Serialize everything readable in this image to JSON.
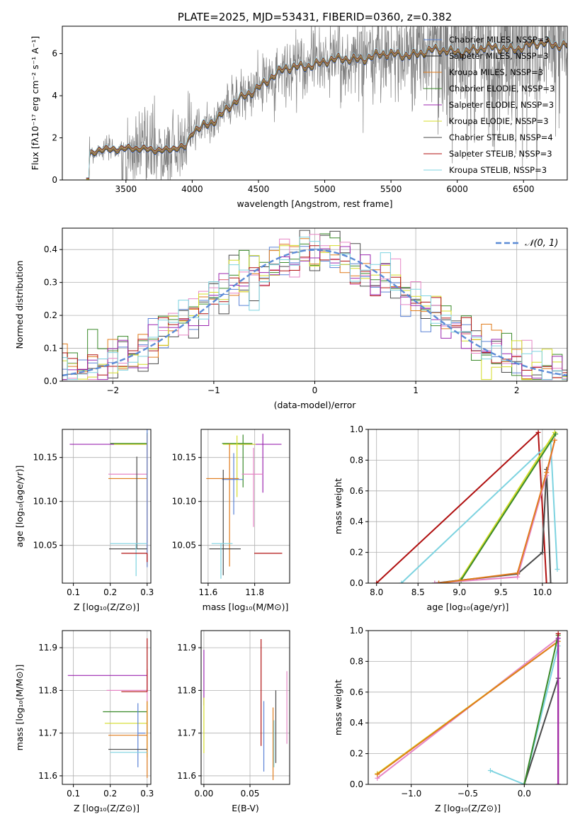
{
  "chart_data": [
    {
      "id": "spectrum",
      "type": "line",
      "title": "PLATE=2025, MJD=53431, FIBERID=0360, z=0.382",
      "xlabel": "wavelength [Angstrom, rest frame]",
      "ylabel": "Flux [fλ10⁻¹⁷ erg cm⁻² s⁻¹ A⁻¹]",
      "xlim": [
        3020,
        6830
      ],
      "ylim": [
        0,
        7.3
      ],
      "xticks": [
        3500,
        4000,
        4500,
        5000,
        5500,
        6000,
        6500
      ],
      "yticks": [
        0,
        2,
        4,
        6
      ],
      "grid": false,
      "legend_position": "top-right",
      "data_color": "#808080",
      "series": [
        {
          "name": "Chabrier MILES, NSSP=3",
          "color": "#5b83d6"
        },
        {
          "name": "Salpeter MILES, NSSP=3",
          "color": "#1a1a1a"
        },
        {
          "name": "Kroupa MILES, NSSP=3",
          "color": "#e07b1b"
        },
        {
          "name": "Chabrier ELODIE, NSSP=3",
          "color": "#3a8a2a"
        },
        {
          "name": "Salpeter ELODIE, NSSP=3",
          "color": "#9c27b0"
        },
        {
          "name": "Kroupa ELODIE, NSSP=3",
          "color": "#d4dc28"
        },
        {
          "name": "Chabrier STELIB, NSSP=4",
          "color": "#4a4a4a"
        },
        {
          "name": "Salpeter STELIB, NSSP=3",
          "color": "#b01010"
        },
        {
          "name": "Kroupa STELIB, NSSP=3",
          "color": "#7dd3e0"
        }
      ],
      "continuum_model": {
        "x": [
          3200,
          3230,
          3300,
          3400,
          3500,
          3600,
          3700,
          3800,
          3900,
          3950,
          4000,
          4100,
          4200,
          4300,
          4400,
          4500,
          4600,
          4700,
          4800,
          4900,
          5000,
          5100,
          5200,
          5300,
          5400,
          5500,
          5600,
          5700,
          5800,
          5900,
          6000,
          6100,
          6200,
          6300,
          6400,
          6500,
          6600,
          6700,
          6830
        ],
        "y": [
          0,
          1.2,
          1.5,
          1.5,
          1.45,
          1.45,
          1.5,
          1.45,
          1.5,
          1.5,
          2.3,
          2.7,
          3.0,
          3.5,
          4.0,
          4.5,
          4.9,
          5.2,
          5.4,
          5.55,
          5.6,
          5.65,
          5.8,
          5.85,
          5.9,
          5.9,
          6.0,
          6.05,
          6.1,
          6.1,
          6.15,
          6.2,
          6.2,
          6.25,
          6.3,
          6.35,
          6.4,
          6.45,
          6.5
        ]
      }
    },
    {
      "id": "residuals",
      "type": "bar",
      "xlabel": "(data-model)/error",
      "ylabel": "Normed distribution",
      "xlim": [
        -2.5,
        2.5
      ],
      "ylim": [
        0,
        0.465
      ],
      "xticks": [
        -2,
        -1,
        0,
        1,
        2
      ],
      "yticks": [
        0.0,
        0.1,
        0.2,
        0.3,
        0.4
      ],
      "grid": true,
      "legend_position": "top-right",
      "gaussian_label": "𝒩(0, 1)",
      "gaussian_color": "#5b8bd6",
      "bin_width": 0.1,
      "series_colors": [
        "#5b83d6",
        "#4a4a4a",
        "#e07b1b",
        "#3a8a2a",
        "#e685c5",
        "#d4dc28",
        "#b01010",
        "#9c27b0",
        "#7dd3e0"
      ]
    },
    {
      "id": "age-vs-Z",
      "type": "scatter",
      "xlabel": "Z [log₁₀(Z/Z⊙)]",
      "ylabel": "age  [log₁₀(age/yr)]",
      "xlim": [
        0.07,
        0.31
      ],
      "ylim": [
        10.007,
        10.182
      ],
      "xticks": [
        0.1,
        0.2,
        0.3
      ],
      "yticks": [
        10.05,
        10.1,
        10.15
      ],
      "grid": true,
      "points": [
        {
          "color": "#9c27b0",
          "x": 0.3,
          "xerr": [
            0.21,
            0.0
          ],
          "y": 10.165,
          "yerr": [
            0.01,
            0.012
          ]
        },
        {
          "color": "#3a8a2a",
          "x": 0.3,
          "xerr": [
            0.1,
            0.0
          ],
          "y": 10.166,
          "yerr": [
            0.01,
            0.012
          ]
        },
        {
          "color": "#d4dc28",
          "x": 0.3,
          "xerr": [
            0.09,
            0.0
          ],
          "y": 10.165,
          "yerr": [
            0.08,
            0.012
          ]
        },
        {
          "color": "#e685c5",
          "x": 0.3,
          "xerr": [
            0.105,
            0.0
          ],
          "y": 10.131,
          "yerr": [
            0.1,
            0.04
          ]
        },
        {
          "color": "#e07b1b",
          "x": 0.3,
          "xerr": [
            0.105,
            0.0
          ],
          "y": 10.126,
          "yerr": [
            0.1,
            0.05
          ]
        },
        {
          "color": "#5b83d6",
          "x": 0.3,
          "xerr": [
            0.0,
            0.0
          ],
          "y": 10.125,
          "yerr": [
            0.1,
            0.06
          ]
        },
        {
          "color": "#4a4a4a",
          "x": 0.272,
          "xerr": [
            0.075,
            0.028
          ],
          "y": 10.046,
          "yerr": [
            0.0,
            0.105
          ]
        },
        {
          "color": "#7dd3e0",
          "x": 0.27,
          "xerr": [
            0.07,
            0.03
          ],
          "y": 10.052,
          "yerr": [
            0.037,
            0.0
          ]
        },
        {
          "color": "#b01010",
          "x": 0.3,
          "xerr": [
            0.07,
            0.0
          ],
          "y": 10.041,
          "yerr": [
            0.01,
            0.0
          ]
        }
      ]
    },
    {
      "id": "age-vs-mass",
      "type": "scatter",
      "xlabel": "mass [log₁₀(M/M⊙)]",
      "ylabel": "",
      "xlim": [
        11.57,
        11.95
      ],
      "ylim": [
        10.007,
        10.182
      ],
      "xticks": [
        11.6,
        11.8
      ],
      "yticks": [
        10.05,
        10.1,
        10.15
      ],
      "grid": true,
      "points": [
        {
          "color": "#9c27b0",
          "x": 11.835,
          "xerr": [
            0.1,
            0.08
          ],
          "y": 10.165,
          "yerr": [
            0.055,
            0.012
          ]
        },
        {
          "color": "#3a8a2a",
          "x": 11.75,
          "xerr": [
            0.09,
            0.04
          ],
          "y": 10.166,
          "yerr": [
            0.05,
            0.01
          ]
        },
        {
          "color": "#d4dc28",
          "x": 11.724,
          "xerr": [
            0.06,
            0.08
          ],
          "y": 10.165,
          "yerr": [
            0.06,
            0.01
          ]
        },
        {
          "color": "#e685c5",
          "x": 11.795,
          "xerr": [
            0.05,
            0.04
          ],
          "y": 10.131,
          "yerr": [
            0.06,
            0.03
          ]
        },
        {
          "color": "#e07b1b",
          "x": 11.692,
          "xerr": [
            0.1,
            0.04
          ],
          "y": 10.126,
          "yerr": [
            0.1,
            0.04
          ]
        },
        {
          "color": "#5b83d6",
          "x": 11.71,
          "xerr": [
            0.05,
            0.04
          ],
          "y": 10.125,
          "yerr": [
            0.04,
            0.03
          ]
        },
        {
          "color": "#4a4a4a",
          "x": 11.665,
          "xerr": [
            0.06,
            0.075
          ],
          "y": 10.046,
          "yerr": [
            0.03,
            0.09
          ]
        },
        {
          "color": "#7dd3e0",
          "x": 11.655,
          "xerr": [
            0.04,
            0.05
          ],
          "y": 10.052,
          "yerr": [
            0.04,
            0.0
          ]
        },
        {
          "color": "#b01010",
          "x": 11.798,
          "xerr": [
            0.0,
            0.12
          ],
          "y": 10.041,
          "yerr": [
            0.0,
            0.0
          ]
        }
      ]
    },
    {
      "id": "sfh-age",
      "type": "line",
      "xlabel": "age  [log₁₀(age/yr)]",
      "ylabel": "mass weight",
      "xlim": [
        7.9,
        10.3
      ],
      "ylim": [
        0.0,
        1.0
      ],
      "xticks": [
        8.0,
        8.5,
        9.0,
        9.5,
        10.0
      ],
      "yticks": [
        0.0,
        0.2,
        0.4,
        0.6,
        0.8,
        1.0
      ],
      "grid": true,
      "series": [
        {
          "color": "#b01010",
          "x": [
            8.0,
            9.95,
            10.05
          ],
          "y": [
            0.0,
            0.98,
            0.0
          ]
        },
        {
          "color": "#7dd3e0",
          "x": [
            8.3,
            10.1,
            10.18
          ],
          "y": [
            0.0,
            0.92,
            0.09
          ]
        },
        {
          "color": "#d4dc28",
          "x": [
            8.75,
            9.0,
            10.15
          ],
          "y": [
            0.0,
            0.015,
            0.98
          ]
        },
        {
          "color": "#3a8a2a",
          "x": [
            8.75,
            9.02,
            10.16
          ],
          "y": [
            0.0,
            0.02,
            0.97
          ]
        },
        {
          "color": "#4a4a4a",
          "x": [
            8.7,
            9.7,
            10.0,
            10.05,
            10.1
          ],
          "y": [
            0.0,
            0.06,
            0.2,
            0.74,
            0.0
          ]
        },
        {
          "color": "#e685c5",
          "x": [
            8.7,
            9.7,
            10.05,
            10.15
          ],
          "y": [
            0.0,
            0.04,
            0.7,
            0.93
          ]
        },
        {
          "color": "#e07b1b",
          "x": [
            8.75,
            9.7,
            10.05,
            10.15
          ],
          "y": [
            0.0,
            0.065,
            0.72,
            0.93
          ]
        }
      ]
    },
    {
      "id": "mass-vs-Z",
      "type": "scatter",
      "xlabel": "Z [log₁₀(Z/Z⊙)]",
      "ylabel": "mass [log₁₀(M/M⊙)]",
      "xlim": [
        0.07,
        0.31
      ],
      "ylim": [
        11.58,
        11.94
      ],
      "xticks": [
        0.1,
        0.2,
        0.3
      ],
      "yticks": [
        11.6,
        11.7,
        11.8,
        11.9
      ],
      "grid": true,
      "points": [
        {
          "color": "#9c27b0",
          "x": 0.3,
          "xerr": [
            0.215,
            0.0
          ],
          "y": 11.835,
          "yerr": [
            0.0,
            0.0
          ]
        },
        {
          "color": "#e685c5",
          "x": 0.3,
          "xerr": [
            0.11,
            0.0
          ],
          "y": 11.8,
          "yerr": [
            0.15,
            0.05
          ]
        },
        {
          "color": "#b01010",
          "x": 0.3,
          "xerr": [
            0.07,
            0.0
          ],
          "y": 11.797,
          "yerr": [
            0.0,
            0.125
          ]
        },
        {
          "color": "#3a8a2a",
          "x": 0.3,
          "xerr": [
            0.12,
            0.0
          ],
          "y": 11.75,
          "yerr": [
            0.05,
            0.0
          ]
        },
        {
          "color": "#d4dc28",
          "x": 0.3,
          "xerr": [
            0.115,
            0.0
          ],
          "y": 11.723,
          "yerr": [
            0.08,
            0.05
          ]
        },
        {
          "color": "#e07b1b",
          "x": 0.3,
          "xerr": [
            0.105,
            0.0
          ],
          "y": 11.695,
          "yerr": [
            0.1,
            0.08
          ]
        },
        {
          "color": "#5b83d6",
          "x": 0.275,
          "xerr": [
            0.0,
            0.02
          ],
          "y": 11.7,
          "yerr": [
            0.08,
            0.07
          ]
        },
        {
          "color": "#4a4a4a",
          "x": 0.27,
          "xerr": [
            0.075,
            0.03
          ],
          "y": 11.662,
          "yerr": [
            0.0,
            0.0
          ]
        },
        {
          "color": "#7dd3e0",
          "x": 0.27,
          "xerr": [
            0.07,
            0.03
          ],
          "y": 11.655,
          "yerr": [
            0.0,
            0.0
          ]
        }
      ]
    },
    {
      "id": "mass-vs-ebv",
      "type": "scatter",
      "xlabel": "E(B-V)",
      "ylabel": "",
      "xlim": [
        -0.003,
        0.093
      ],
      "ylim": [
        11.58,
        11.94
      ],
      "xticks": [
        0.0,
        0.05
      ],
      "yticks": [
        11.6,
        11.7,
        11.8,
        11.9
      ],
      "grid": true,
      "points": [
        {
          "color": "#9c27b0",
          "x": 0.0,
          "y": 11.835,
          "yerr": [
            0.07,
            0.06
          ]
        },
        {
          "color": "#d4dc28",
          "x": 0.0,
          "y": 11.723,
          "yerr": [
            0.07,
            0.06
          ]
        },
        {
          "color": "#b01010",
          "x": 0.062,
          "y": 11.8,
          "yerr": [
            0.13,
            0.12
          ]
        },
        {
          "color": "#5b83d6",
          "x": 0.065,
          "y": 11.7,
          "yerr": [
            0.09,
            0.075
          ]
        },
        {
          "color": "#e07b1b",
          "x": 0.075,
          "y": 11.68,
          "yerr": [
            0.09,
            0.08
          ]
        },
        {
          "color": "#7dd3e0",
          "x": 0.076,
          "y": 11.68,
          "yerr": [
            0.06,
            0.05
          ]
        },
        {
          "color": "#4a4a4a",
          "x": 0.078,
          "y": 11.72,
          "yerr": [
            0.09,
            0.08
          ]
        },
        {
          "color": "#e685c5",
          "x": 0.09,
          "y": 11.76,
          "yerr": [
            0.085,
            0.085
          ]
        }
      ]
    },
    {
      "id": "sfh-Z",
      "type": "line",
      "xlabel": "Z [log₁₀(Z/Z⊙)]",
      "ylabel": "mass weight",
      "xlim": [
        -1.38,
        0.38
      ],
      "ylim": [
        0.0,
        1.0
      ],
      "xticks": [
        -1.0,
        -0.5,
        0.0
      ],
      "yticks": [
        0.0,
        0.2,
        0.4,
        0.6,
        0.8,
        1.0
      ],
      "grid": true,
      "series": [
        {
          "color": "#e685c5",
          "x": [
            -1.3,
            0.3
          ],
          "y": [
            0.04,
            0.95
          ]
        },
        {
          "color": "#d4dc28",
          "x": [
            -1.3,
            0.3
          ],
          "y": [
            0.07,
            0.93
          ]
        },
        {
          "color": "#e07b1b",
          "x": [
            -1.3,
            0.3
          ],
          "y": [
            0.065,
            0.93
          ]
        },
        {
          "color": "#7dd3e0",
          "x": [
            -0.3,
            0.0,
            0.3
          ],
          "y": [
            0.09,
            0.0,
            0.9
          ]
        },
        {
          "color": "#4a4a4a",
          "x": [
            0.0,
            0.3
          ],
          "y": [
            0.0,
            0.69
          ]
        },
        {
          "color": "#3a8a2a",
          "x": [
            0.0,
            0.3
          ],
          "y": [
            0.0,
            0.97
          ]
        },
        {
          "color": "#b01010",
          "x": [
            0.3,
            0.3
          ],
          "y": [
            0.0,
            0.98
          ]
        },
        {
          "color": "#9c27b0",
          "x": [
            0.3,
            0.3
          ],
          "y": [
            0.0,
            0.95
          ]
        }
      ]
    }
  ]
}
